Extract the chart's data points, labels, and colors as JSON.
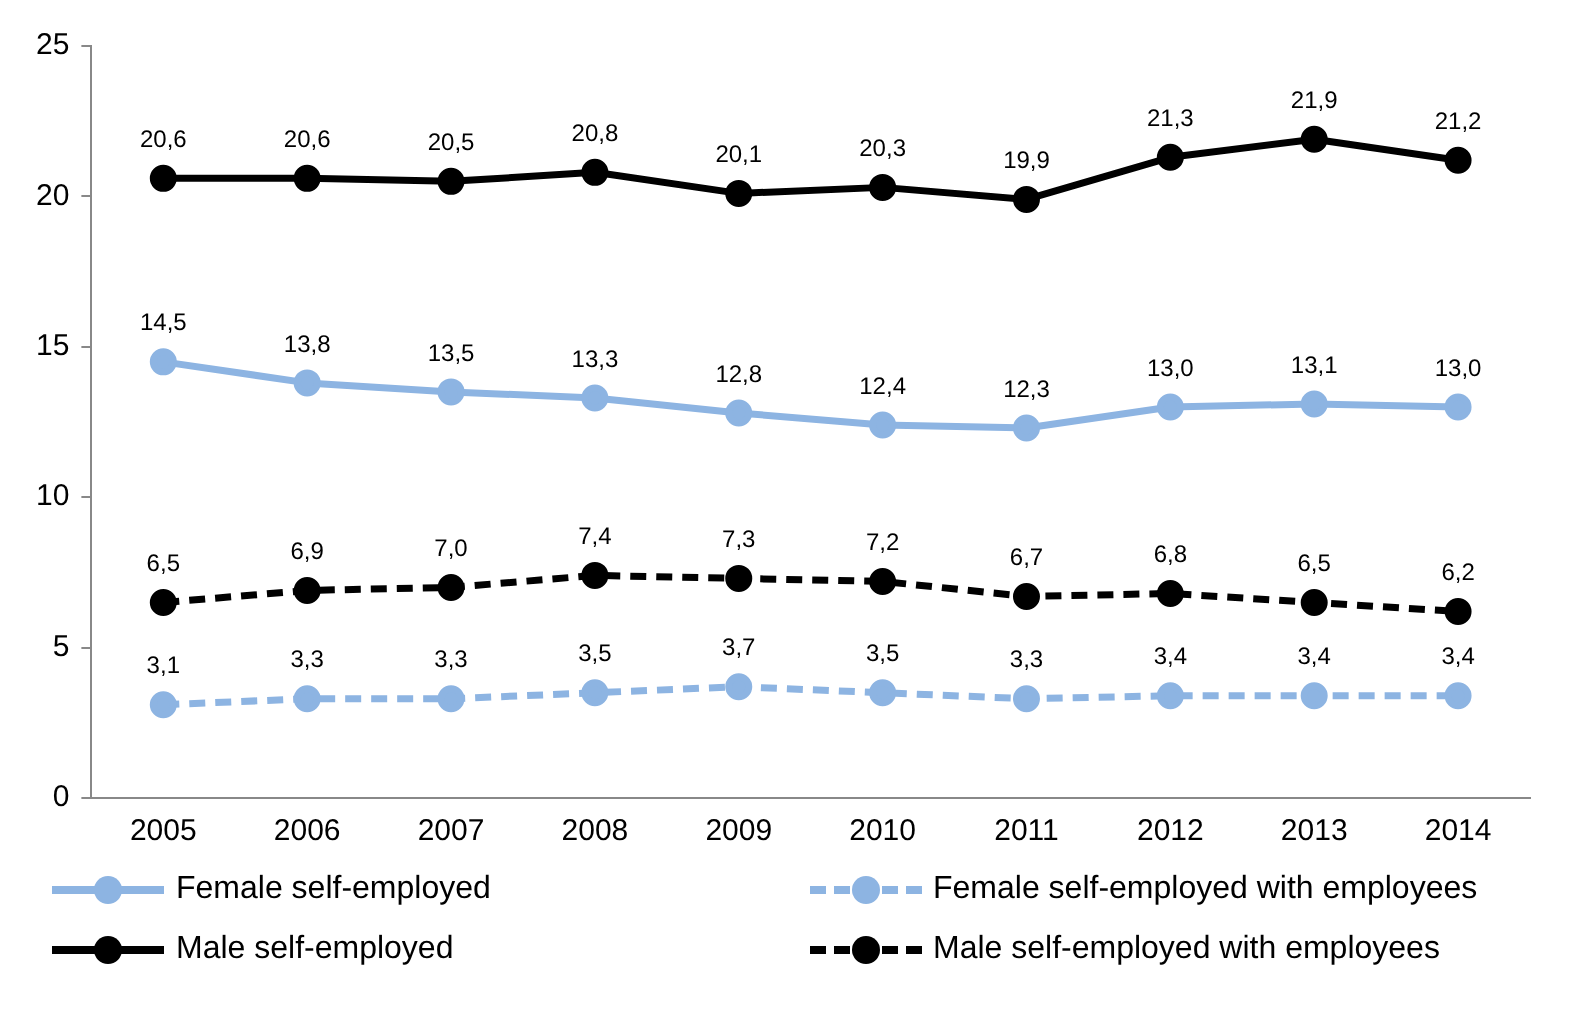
{
  "chart_data": {
    "type": "line",
    "categories": [
      "2005",
      "2006",
      "2007",
      "2008",
      "2009",
      "2010",
      "2011",
      "2012",
      "2013",
      "2014"
    ],
    "ylim": [
      0,
      25
    ],
    "yticks": [
      0,
      5,
      10,
      15,
      20,
      25
    ],
    "grid": false,
    "legend": "bottom",
    "marker": "circle",
    "series": [
      {
        "name": "Female self-employed",
        "color": "#8db4e2",
        "line_style": "solid",
        "values": [
          14.5,
          13.8,
          13.5,
          13.3,
          12.8,
          12.4,
          12.3,
          13.0,
          13.1,
          13.0
        ],
        "value_labels": [
          "14,5",
          "13,8",
          "13,5",
          "13,3",
          "12,8",
          "12,4",
          "12,3",
          "13,0",
          "13,1",
          "13,0"
        ]
      },
      {
        "name": "Female self-employed with employees",
        "color": "#8db4e2",
        "line_style": "dashed",
        "values": [
          3.1,
          3.3,
          3.3,
          3.5,
          3.7,
          3.5,
          3.3,
          3.4,
          3.4,
          3.4
        ],
        "value_labels": [
          "3,1",
          "3,3",
          "3,3",
          "3,5",
          "3,7",
          "3,5",
          "3,3",
          "3,4",
          "3,4",
          "3,4"
        ]
      },
      {
        "name": "Male self-employed",
        "color": "#000000",
        "line_style": "solid",
        "values": [
          20.6,
          20.6,
          20.5,
          20.8,
          20.1,
          20.3,
          19.9,
          21.3,
          21.9,
          21.2
        ],
        "value_labels": [
          "20,6",
          "20,6",
          "20,5",
          "20,8",
          "20,1",
          "20,3",
          "19,9",
          "21,3",
          "21,9",
          "21,2"
        ]
      },
      {
        "name": "Male self-employed with employees",
        "color": "#000000",
        "line_style": "dashed",
        "values": [
          6.5,
          6.9,
          7.0,
          7.4,
          7.3,
          7.2,
          6.7,
          6.8,
          6.5,
          6.2
        ],
        "value_labels": [
          "6,5",
          "6,9",
          "7,0",
          "7,4",
          "7,3",
          "7,2",
          "6,7",
          "6,8",
          "6,5",
          "6,2"
        ]
      }
    ]
  }
}
